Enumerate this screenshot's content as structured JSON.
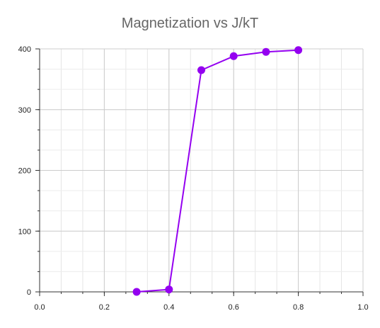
{
  "chart_data": {
    "type": "line",
    "title": "Magnetization vs J/kT",
    "xlabel": "",
    "ylabel": "",
    "xlim": [
      0.0,
      1.0
    ],
    "ylim": [
      0,
      400
    ],
    "x_ticks": [
      "0.0",
      "0.2",
      "0.4",
      "0.6",
      "0.8",
      "1.0"
    ],
    "y_ticks": [
      "0",
      "100",
      "200",
      "300",
      "400"
    ],
    "grid": true,
    "legend": "none",
    "series": [
      {
        "color": "#9400f0",
        "x": [
          0.3,
          0.4,
          0.5,
          0.6,
          0.7,
          0.8
        ],
        "y": [
          0,
          4,
          365,
          388,
          395,
          398
        ]
      }
    ]
  }
}
